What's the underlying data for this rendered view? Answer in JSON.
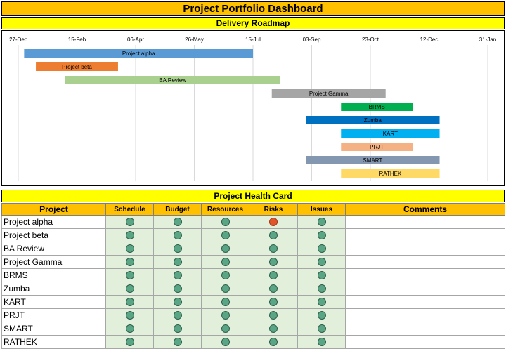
{
  "title": "Project Portfolio Dashboard",
  "roadmap": {
    "heading": "Delivery Roadmap"
  },
  "chart_data": {
    "type": "gantt",
    "x_ticks": [
      "27-Dec",
      "15-Feb",
      "06-Apr",
      "26-May",
      "15-Jul",
      "03-Sep",
      "23-Oct",
      "12-Dec",
      "31-Jan"
    ],
    "x_range_days": [
      0,
      400
    ],
    "grid": true,
    "tasks": [
      {
        "name": "Project alpha",
        "start": 5,
        "end": 200,
        "color": "#5b9bd5"
      },
      {
        "name": "Project beta",
        "start": 15,
        "end": 85,
        "color": "#ed7d31"
      },
      {
        "name": "BA Review",
        "start": 40,
        "end": 223,
        "color": "#a9d08e"
      },
      {
        "name": "Project Gamma",
        "start": 216,
        "end": 313,
        "color": "#a5a5a5"
      },
      {
        "name": "BRMS",
        "start": 275,
        "end": 336,
        "color": "#00b050"
      },
      {
        "name": "Zumba",
        "start": 245,
        "end": 359,
        "color": "#0070c0"
      },
      {
        "name": "KART",
        "start": 275,
        "end": 359,
        "color": "#00b0f0"
      },
      {
        "name": "PRJT",
        "start": 275,
        "end": 336,
        "color": "#f4b183"
      },
      {
        "name": "SMART",
        "start": 245,
        "end": 359,
        "color": "#8497b0"
      },
      {
        "name": "RATHEK",
        "start": 275,
        "end": 359,
        "color": "#ffd966"
      }
    ]
  },
  "health": {
    "heading": "Project Health Card",
    "columns": [
      "Project",
      "Schedule",
      "Budget",
      "Resources",
      "Risks",
      "Issues",
      "Comments"
    ],
    "status_colors": {
      "green": "#5aa684",
      "red": "#e2552b"
    },
    "rows": [
      {
        "project": "Project alpha",
        "status": [
          "green",
          "green",
          "green",
          "red",
          "green"
        ],
        "comment": ""
      },
      {
        "project": "Project beta",
        "status": [
          "green",
          "green",
          "green",
          "green",
          "green"
        ],
        "comment": ""
      },
      {
        "project": "BA Review",
        "status": [
          "green",
          "green",
          "green",
          "green",
          "green"
        ],
        "comment": ""
      },
      {
        "project": "Project Gamma",
        "status": [
          "green",
          "green",
          "green",
          "green",
          "green"
        ],
        "comment": ""
      },
      {
        "project": "BRMS",
        "status": [
          "green",
          "green",
          "green",
          "green",
          "green"
        ],
        "comment": ""
      },
      {
        "project": "Zumba",
        "status": [
          "green",
          "green",
          "green",
          "green",
          "green"
        ],
        "comment": ""
      },
      {
        "project": "KART",
        "status": [
          "green",
          "green",
          "green",
          "green",
          "green"
        ],
        "comment": ""
      },
      {
        "project": "PRJT",
        "status": [
          "green",
          "green",
          "green",
          "green",
          "green"
        ],
        "comment": ""
      },
      {
        "project": "SMART",
        "status": [
          "green",
          "green",
          "green",
          "green",
          "green"
        ],
        "comment": ""
      },
      {
        "project": "RATHEK",
        "status": [
          "green",
          "green",
          "green",
          "green",
          "green"
        ],
        "comment": ""
      }
    ]
  }
}
